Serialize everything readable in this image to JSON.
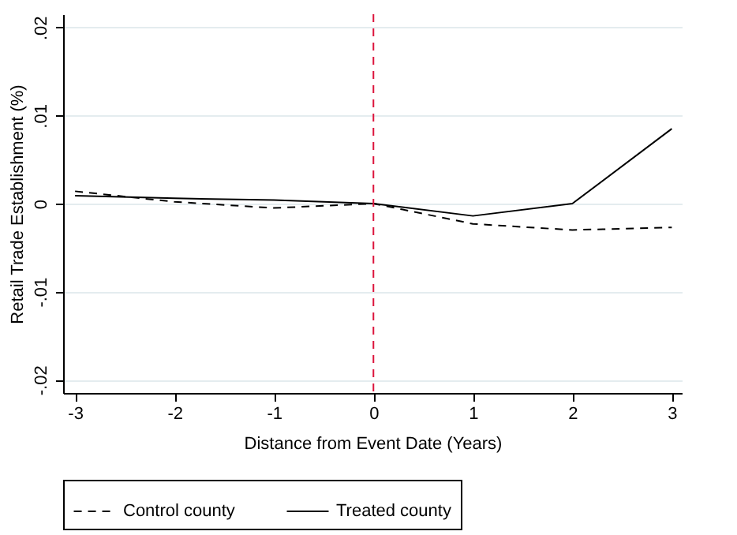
{
  "chart_data": {
    "type": "line",
    "xlabel": "Distance from Event Date (Years)",
    "ylabel": "Retail Trade Establishment (%)",
    "x": [
      -3,
      -2,
      -1,
      0,
      1,
      2,
      3
    ],
    "series": [
      {
        "name": "Control county",
        "color": "#000000",
        "line_style": "dashed",
        "values": [
          0.0014,
          0.0002,
          -0.0005,
          0,
          -0.0023,
          -0.003,
          -0.0027
        ]
      },
      {
        "name": "Treated county",
        "color": "#000000",
        "line_style": "solid",
        "values": [
          0.0009,
          0.0006,
          0.0004,
          0,
          -0.0014,
          0,
          0.0085
        ]
      }
    ],
    "xlim": [
      -3.12,
      3.1
    ],
    "ylim": [
      -0.0215,
      0.0215
    ],
    "xticks": [
      -3,
      -2,
      -1,
      0,
      1,
      2,
      3
    ],
    "yticks": [
      {
        "value": -0.02,
        "label": "-.02"
      },
      {
        "value": -0.01,
        "label": "-.01"
      },
      {
        "value": 0,
        "label": "0"
      },
      {
        "value": 0.01,
        "label": ".01"
      },
      {
        "value": 0.02,
        "label": ".02"
      }
    ],
    "grid": "y",
    "legend": "bottom",
    "marker": "none",
    "ref_lines": [
      {
        "axis": "x",
        "value": 0,
        "color": "#dc143c",
        "line_style": "dashed"
      }
    ]
  }
}
